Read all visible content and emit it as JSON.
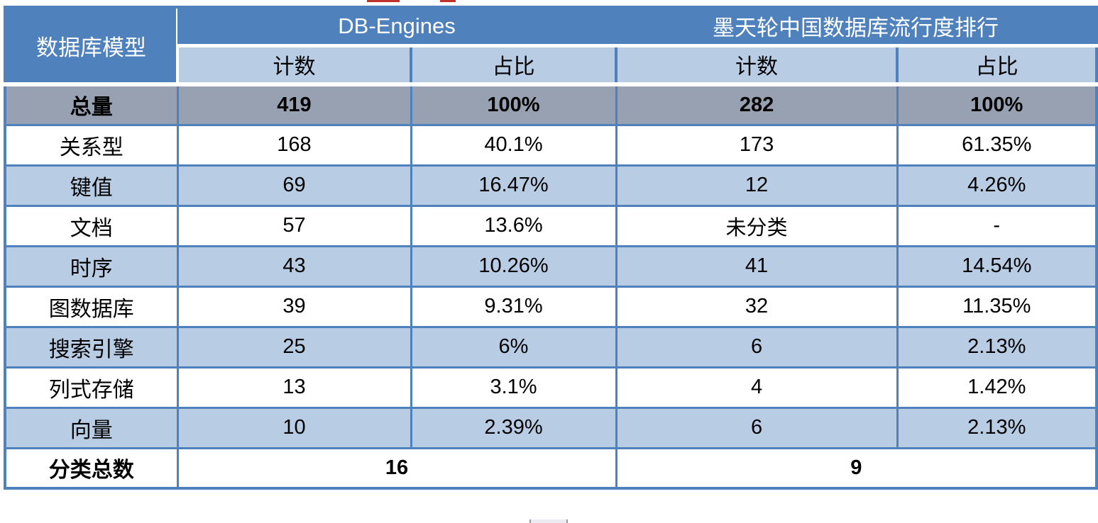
{
  "colors": {
    "header-blue": "#4F81BD",
    "light-blue": "#B8CCE4",
    "total-gray": "#97A1B2",
    "border-blue": "#4F81BD",
    "red-mark": "#C0342C"
  },
  "table": {
    "row_header_label": "数据库模型",
    "groups": [
      {
        "label": "DB-Engines"
      },
      {
        "label": "墨天轮中国数据库流行度排行"
      }
    ],
    "sub_headers": [
      "计数",
      "占比",
      "计数",
      "占比"
    ],
    "rows": [
      {
        "label": "总量",
        "cells": [
          "419",
          "100%",
          "282",
          "100%"
        ],
        "style": "total"
      },
      {
        "label": "关系型",
        "cells": [
          "168",
          "40.1%",
          "173",
          "61.35%"
        ]
      },
      {
        "label": "键值",
        "cells": [
          "69",
          "16.47%",
          "12",
          "4.26%"
        ]
      },
      {
        "label": "文档",
        "cells": [
          "57",
          "13.6%",
          "未分类",
          "-"
        ]
      },
      {
        "label": "时序",
        "cells": [
          "43",
          "10.26%",
          "41",
          "14.54%"
        ]
      },
      {
        "label": "图数据库",
        "cells": [
          "39",
          "9.31%",
          "32",
          "11.35%"
        ]
      },
      {
        "label": "搜索引擎",
        "cells": [
          "25",
          "6%",
          "6",
          "2.13%"
        ]
      },
      {
        "label": "列式存储",
        "cells": [
          "13",
          "3.1%",
          "4",
          "1.42%"
        ]
      },
      {
        "label": "向量",
        "cells": [
          "10",
          "2.39%",
          "6",
          "2.13%"
        ]
      }
    ],
    "footer": {
      "label": "分类总数",
      "left_value": "16",
      "right_value": "9"
    }
  },
  "chart_data": {
    "type": "table",
    "title": "",
    "columns": [
      "数据库模型",
      "DB-Engines 计数",
      "DB-Engines 占比",
      "墨天轮中国数据库流行度排行 计数",
      "墨天轮中国数据库流行度排行 占比"
    ],
    "rows": [
      [
        "总量",
        "419",
        "100%",
        "282",
        "100%"
      ],
      [
        "关系型",
        "168",
        "40.1%",
        "173",
        "61.35%"
      ],
      [
        "键值",
        "69",
        "16.47%",
        "12",
        "4.26%"
      ],
      [
        "文档",
        "57",
        "13.6%",
        "未分类",
        "-"
      ],
      [
        "时序",
        "43",
        "10.26%",
        "41",
        "14.54%"
      ],
      [
        "图数据库",
        "39",
        "9.31%",
        "32",
        "11.35%"
      ],
      [
        "搜索引擎",
        "25",
        "6%",
        "6",
        "2.13%"
      ],
      [
        "列式存储",
        "13",
        "3.1%",
        "4",
        "1.42%"
      ],
      [
        "向量",
        "10",
        "2.39%",
        "6",
        "2.13%"
      ],
      [
        "分类总数",
        "16",
        "",
        "9",
        ""
      ]
    ],
    "layout": {
      "grid": true,
      "header_rows": 2,
      "legend_position": "none"
    }
  }
}
